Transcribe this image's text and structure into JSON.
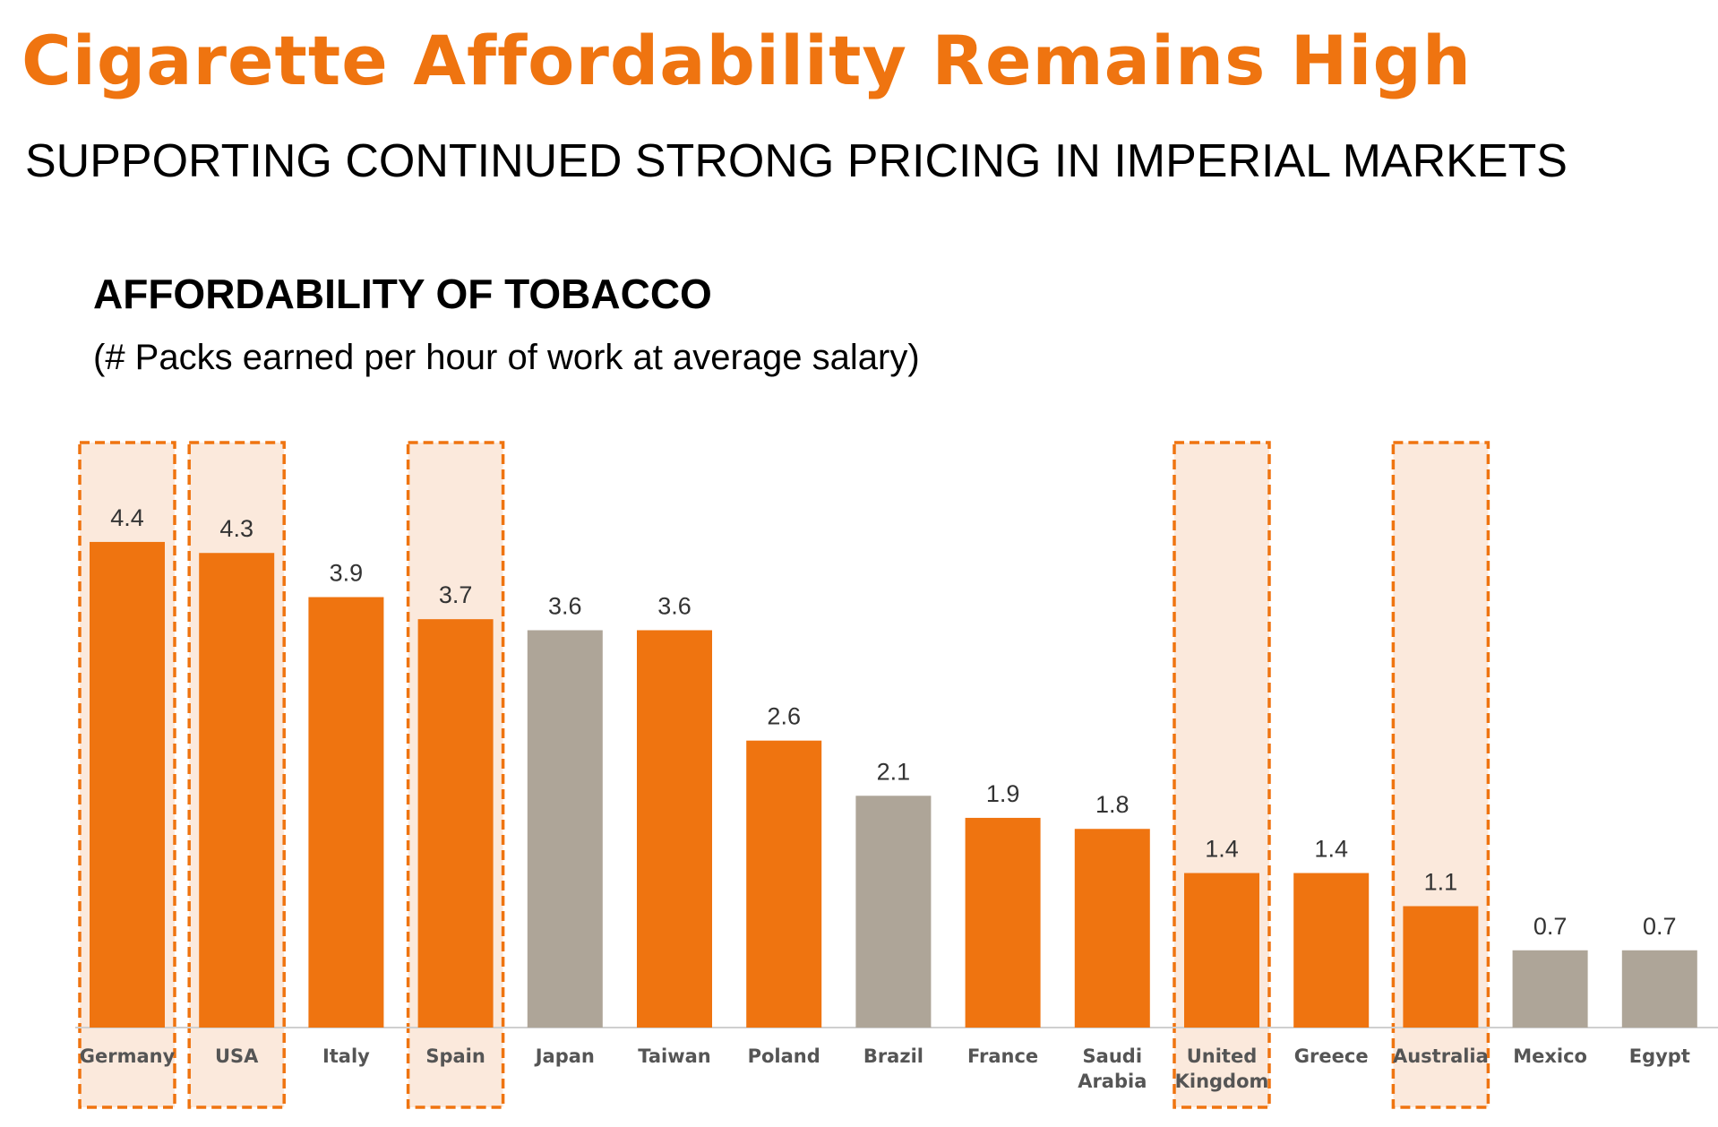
{
  "header": {
    "title": "Cigarette Affordability Remains High",
    "subtitle": "SUPPORTING CONTINUED STRONG PRICING IN IMPERIAL MARKETS"
  },
  "colors": {
    "title": "#ef7410",
    "imperial_bar": "#ef7410",
    "other_bar": "#aea598",
    "highlight_fill": "#fbe9dc",
    "highlight_border": "#ef7410"
  },
  "chart_data": {
    "type": "bar",
    "title": "AFFORDABILITY OF TOBACCO",
    "subtitle": "(# Packs earned per hour of work at average salary)",
    "xlabel": "",
    "ylabel": "",
    "ylim": [
      0,
      4.4
    ],
    "grid": false,
    "categories": [
      [
        "Germany"
      ],
      [
        "USA"
      ],
      [
        "Italy"
      ],
      [
        "Spain"
      ],
      [
        "Japan"
      ],
      [
        "Taiwan"
      ],
      [
        "Poland"
      ],
      [
        "Brazil"
      ],
      [
        "France"
      ],
      [
        "Saudi",
        "Arabia"
      ],
      [
        "United",
        "Kingdom"
      ],
      [
        "Greece"
      ],
      [
        "Australia"
      ],
      [
        "Mexico"
      ],
      [
        "Egypt"
      ]
    ],
    "values": [
      4.4,
      4.3,
      3.9,
      3.7,
      3.6,
      3.6,
      2.6,
      2.1,
      1.9,
      1.8,
      1.4,
      1.4,
      1.1,
      0.7,
      0.7
    ],
    "value_labels": [
      "4.4",
      "4.3",
      "3.9",
      "3.7",
      "3.6",
      "3.6",
      "2.6",
      "2.1",
      "1.9",
      "1.8",
      "1.4",
      "1.4",
      "1.1",
      "0.7",
      "0.7"
    ],
    "bar_group": [
      "imperial",
      "imperial",
      "imperial",
      "imperial",
      "other",
      "imperial",
      "imperial",
      "other",
      "imperial",
      "imperial",
      "imperial",
      "imperial",
      "imperial",
      "other",
      "other"
    ],
    "highlighted": [
      true,
      true,
      false,
      true,
      false,
      false,
      false,
      false,
      false,
      false,
      true,
      false,
      true,
      false,
      false
    ]
  }
}
